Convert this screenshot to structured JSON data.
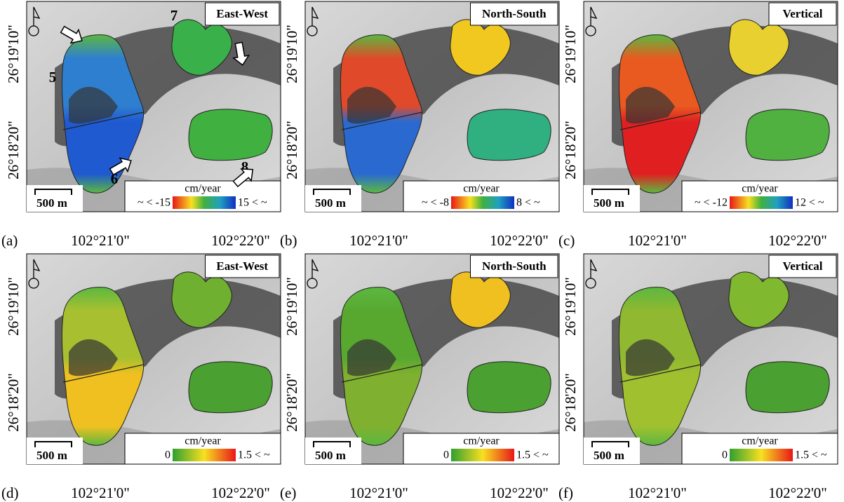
{
  "panels": [
    {
      "label": "(a)",
      "title": "East-West",
      "colorbar": {
        "unit": "cm/year",
        "min_label": "~ < -15",
        "max_label": "15 < ~"
      },
      "lat_labels": [
        "26°19'10\"",
        "26°18'20\""
      ],
      "lon_labels": [
        "102°21'0\"",
        "102°22'0\""
      ],
      "scale_bar": "500 m"
    },
    {
      "label": "(b)",
      "title": "North-South",
      "colorbar": {
        "unit": "cm/year",
        "min_label": "~ < -8",
        "max_label": "8 < ~"
      },
      "lat_labels": [
        "26°19'10\"",
        "26°18'20\""
      ],
      "lon_labels": [
        "102°21'0\"",
        "102°22'0\""
      ],
      "scale_bar": "500 m"
    },
    {
      "label": "(c)",
      "title": "Vertical",
      "colorbar": {
        "unit": "cm/year",
        "min_label": "~ < -12",
        "max_label": "12 < ~"
      },
      "lat_labels": [
        "26°19'10\"",
        "26°18'20\""
      ],
      "lon_labels": [
        "102°21'0\"",
        "102°22'0\""
      ],
      "scale_bar": "500 m"
    },
    {
      "label": "(d)",
      "title": "East-West",
      "colorbar": {
        "unit": "cm/year",
        "min_label": "0",
        "max_label": "1.5 < ~"
      },
      "lat_labels": [
        "26°19'10\"",
        "26°18'20\""
      ],
      "lon_labels": [
        "102°21'0\"",
        "102°22'0\""
      ],
      "scale_bar": "500 m"
    },
    {
      "label": "(e)",
      "title": "North-South",
      "colorbar": {
        "unit": "cm/year",
        "min_label": "0",
        "max_label": "1.5 < ~"
      },
      "lat_labels": [
        "26°19'10\"",
        "26°18'20\""
      ],
      "lon_labels": [
        "102°21'0\"",
        "102°22'0\""
      ],
      "scale_bar": "500 m"
    },
    {
      "label": "(f)",
      "title": "Vertical",
      "colorbar": {
        "unit": "cm/year",
        "min_label": "0",
        "max_label": "1.5 < ~"
      },
      "lat_labels": [
        "26°19'10\"",
        "26°18'20\""
      ],
      "lon_labels": [
        "102°21'0\"",
        "102°22'0\""
      ],
      "scale_bar": "500 m"
    }
  ],
  "annotations": [
    "5",
    "6",
    "7",
    "8"
  ]
}
